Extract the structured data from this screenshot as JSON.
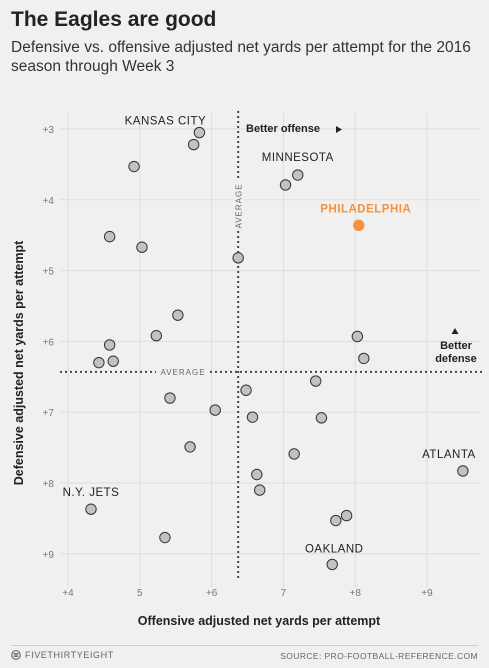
{
  "header": {
    "title": "The Eagles are good",
    "subtitle": "Defensive vs. offensive adjusted net yards per attempt for the 2016 season through Week 3"
  },
  "footer": {
    "brand": "FIVETHIRTYEIGHT",
    "source": "SOURCE: PRO-FOOTBALL-REFERENCE.COM"
  },
  "colors": {
    "point_fill": "#c2c2c2",
    "point_stroke": "#333333",
    "highlight": "#f5923e",
    "grid": "#dddddd",
    "background": "#f0f0f0"
  },
  "chart_data": {
    "type": "scatter",
    "xlabel": "Offensive adjusted net yards per attempt",
    "ylabel": "Defensive adjusted net yards per attempt",
    "xlim": [
      3.85,
      9.62
    ],
    "ylim": [
      3.0,
      9.0
    ],
    "y_reversed": true,
    "grid": true,
    "x_ticks": [
      {
        "value": 4,
        "label": "+4"
      },
      {
        "value": 5,
        "label": "5"
      },
      {
        "value": 6,
        "label": "+6"
      },
      {
        "value": 7,
        "label": "7"
      },
      {
        "value": 8,
        "label": "+8"
      },
      {
        "value": 9,
        "label": "+9"
      }
    ],
    "y_ticks": [
      {
        "value": 3,
        "label": "+3"
      },
      {
        "value": 4,
        "label": "+4"
      },
      {
        "value": 5,
        "label": "+5"
      },
      {
        "value": 6,
        "label": "+6"
      },
      {
        "value": 7,
        "label": "+7"
      },
      {
        "value": 8,
        "label": "+8"
      },
      {
        "value": 9,
        "label": "+9"
      }
    ],
    "average_x": 6.37,
    "average_y": 6.43,
    "average_label": "AVERAGE",
    "annotations": {
      "better_offense": "Better offense",
      "better_defense": [
        "Better",
        "defense"
      ]
    },
    "points": [
      {
        "x": 5.83,
        "y": 3.05,
        "label": "KANSAS CITY"
      },
      {
        "x": 5.75,
        "y": 3.22
      },
      {
        "x": 4.92,
        "y": 3.53
      },
      {
        "x": 7.2,
        "y": 3.65,
        "label": "MINNESOTA"
      },
      {
        "x": 7.03,
        "y": 3.79
      },
      {
        "x": 8.05,
        "y": 4.36,
        "label": "PHILADELPHIA",
        "highlight": true
      },
      {
        "x": 4.58,
        "y": 4.52
      },
      {
        "x": 5.03,
        "y": 4.67
      },
      {
        "x": 6.37,
        "y": 4.82
      },
      {
        "x": 5.53,
        "y": 5.63
      },
      {
        "x": 5.23,
        "y": 5.92
      },
      {
        "x": 8.03,
        "y": 5.93
      },
      {
        "x": 4.58,
        "y": 6.05
      },
      {
        "x": 8.12,
        "y": 6.24
      },
      {
        "x": 4.43,
        "y": 6.3
      },
      {
        "x": 4.63,
        "y": 6.28
      },
      {
        "x": 7.45,
        "y": 6.56
      },
      {
        "x": 6.48,
        "y": 6.69
      },
      {
        "x": 5.42,
        "y": 6.8
      },
      {
        "x": 6.05,
        "y": 6.97
      },
      {
        "x": 6.57,
        "y": 7.07
      },
      {
        "x": 7.53,
        "y": 7.08
      },
      {
        "x": 5.7,
        "y": 7.49
      },
      {
        "x": 7.15,
        "y": 7.59
      },
      {
        "x": 9.5,
        "y": 7.83,
        "label": "ATLANTA"
      },
      {
        "x": 6.63,
        "y": 7.88
      },
      {
        "x": 6.67,
        "y": 8.1
      },
      {
        "x": 4.32,
        "y": 8.37,
        "label": "N.Y. JETS"
      },
      {
        "x": 7.88,
        "y": 8.46
      },
      {
        "x": 7.73,
        "y": 8.53
      },
      {
        "x": 5.35,
        "y": 8.77
      },
      {
        "x": 7.68,
        "y": 9.15,
        "label": "OAKLAND"
      }
    ]
  }
}
